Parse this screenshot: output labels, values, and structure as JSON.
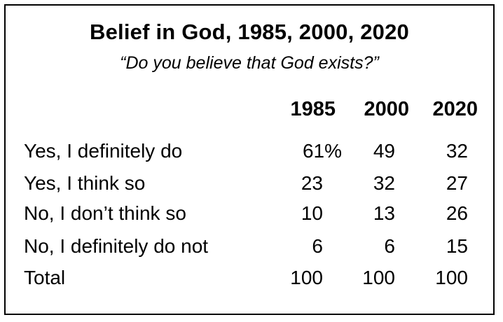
{
  "chart_data": {
    "type": "table",
    "title": "Belief in God, 1985, 2000, 2020",
    "subtitle": "“Do you believe that God exists?”",
    "columns": [
      "1985",
      "2000",
      "2020"
    ],
    "rows": [
      {
        "label": "Yes, I definitely do",
        "values": [
          "61%",
          "49",
          "32"
        ]
      },
      {
        "label": "Yes, I think so",
        "values": [
          "23",
          "32",
          "27"
        ]
      },
      {
        "label": "No, I don’t think so",
        "values": [
          "10",
          "13",
          "26"
        ]
      },
      {
        "label": "No, I definitely do not",
        "values": [
          "6",
          "6",
          "15"
        ]
      },
      {
        "label": "Total",
        "values": [
          "100",
          "100",
          "100"
        ]
      }
    ]
  }
}
